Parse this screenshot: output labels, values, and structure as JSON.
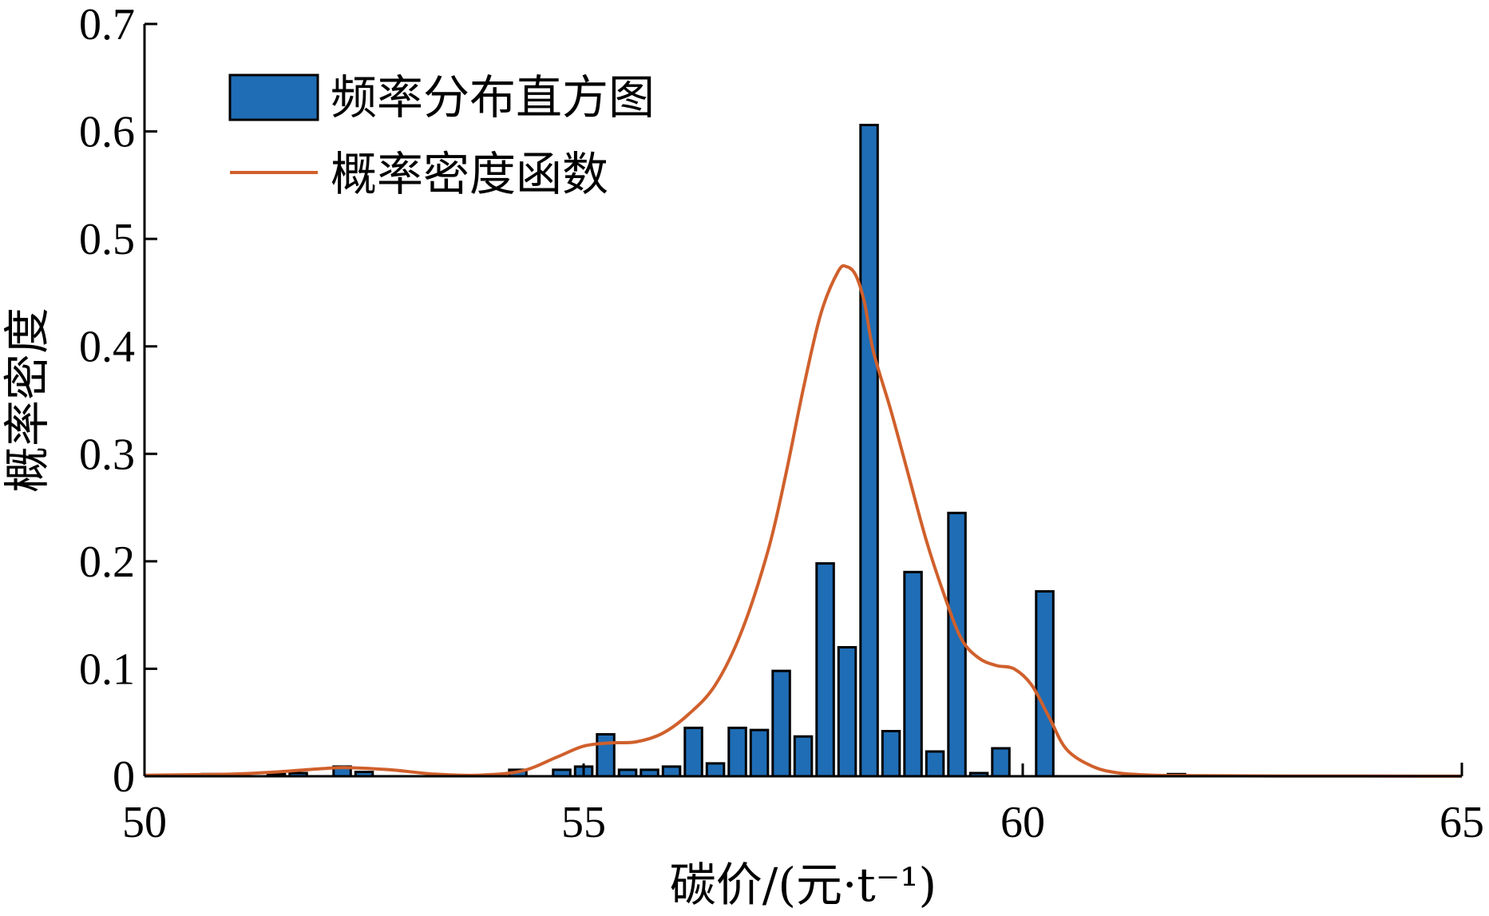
{
  "chart_data": {
    "type": "bar",
    "xlabel": "碳价/(元·t⁻¹)",
    "ylabel": "概率密度",
    "xlim": [
      50,
      65
    ],
    "ylim": [
      0,
      0.7
    ],
    "xticks": [
      "50",
      "55",
      "60",
      "65"
    ],
    "yticks": [
      "0",
      "0.1",
      "0.2",
      "0.3",
      "0.4",
      "0.5",
      "0.6",
      "0.7"
    ],
    "legend_position": "top-left",
    "bar_color": "#1f6db5",
    "line_color": "#d0602c",
    "series": [
      {
        "name": "频率分布直方图",
        "kind": "histogram",
        "bin_width": 0.25,
        "x": [
          50.75,
          51.5,
          51.75,
          52.25,
          52.5,
          54.25,
          54.75,
          55.0,
          55.25,
          55.5,
          55.75,
          56.0,
          56.25,
          56.5,
          56.75,
          57.0,
          57.25,
          57.5,
          57.75,
          58.0,
          58.25,
          58.5,
          58.75,
          59.0,
          59.25,
          59.5,
          59.75,
          60.25,
          61.75
        ],
        "values": [
          0.002,
          0.002,
          0.003,
          0.009,
          0.004,
          0.006,
          0.006,
          0.009,
          0.039,
          0.006,
          0.006,
          0.009,
          0.045,
          0.012,
          0.045,
          0.043,
          0.098,
          0.037,
          0.198,
          0.12,
          0.606,
          0.042,
          0.19,
          0.023,
          0.245,
          0.003,
          0.026,
          0.172,
          0.002
        ]
      },
      {
        "name": "概率密度函数",
        "kind": "line",
        "x": [
          50.0,
          51.0,
          51.5,
          52.0,
          52.3,
          52.8,
          53.3,
          53.8,
          54.3,
          54.7,
          55.0,
          55.3,
          55.6,
          55.9,
          56.2,
          56.5,
          56.8,
          57.1,
          57.3,
          57.5,
          57.7,
          57.9,
          58.0,
          58.1,
          58.2,
          58.3,
          58.5,
          58.7,
          58.9,
          59.1,
          59.3,
          59.5,
          59.7,
          59.9,
          60.1,
          60.3,
          60.5,
          60.8,
          61.1,
          61.5,
          62.0,
          63.0,
          65.0
        ],
        "values": [
          0.001,
          0.002,
          0.004,
          0.007,
          0.008,
          0.006,
          0.002,
          0.001,
          0.005,
          0.018,
          0.028,
          0.031,
          0.032,
          0.04,
          0.058,
          0.085,
          0.135,
          0.21,
          0.28,
          0.36,
          0.43,
          0.47,
          0.474,
          0.466,
          0.44,
          0.395,
          0.34,
          0.28,
          0.22,
          0.17,
          0.128,
          0.11,
          0.103,
          0.1,
          0.085,
          0.055,
          0.025,
          0.009,
          0.003,
          0.001,
          0.0005,
          0.0002,
          0.0001
        ]
      }
    ]
  }
}
